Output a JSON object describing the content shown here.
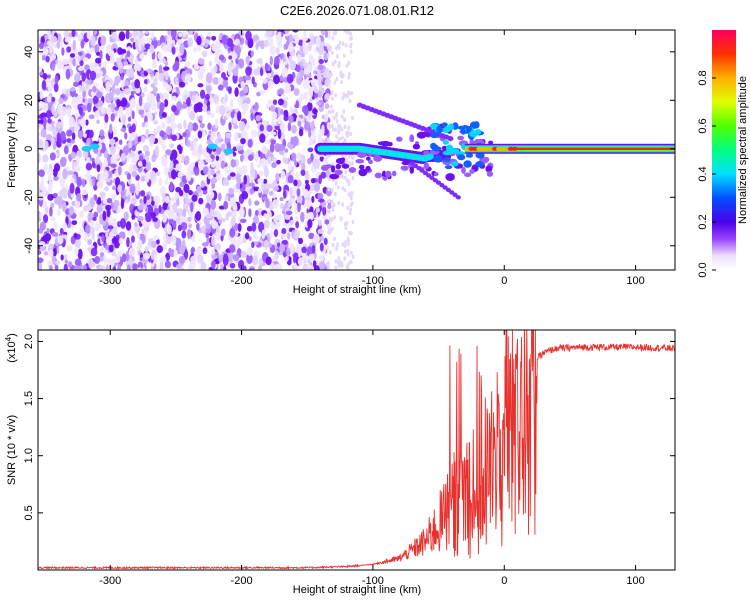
{
  "title": "C2E6.2026.071.08.01.R12",
  "chart_data": [
    {
      "type": "heatmap",
      "xlabel": "Height of straight line (km)",
      "ylabel": "Frequency (Hz)",
      "xlim": [
        -355,
        130
      ],
      "ylim": [
        -50,
        49
      ],
      "xticks": [
        -300,
        -200,
        -100,
        0,
        100
      ],
      "yticks": [
        -40,
        -20,
        0,
        20,
        40
      ],
      "colorbar": {
        "label": "Normalized spectral amplitude",
        "range": [
          0,
          1
        ],
        "ticks": [
          "0.0",
          "0.2",
          "0.4",
          "0.6",
          "0.8"
        ],
        "tick_values": [
          0.0,
          0.2,
          0.4,
          0.6,
          0.8
        ]
      },
      "features": [
        {
          "description": "noise region",
          "x_range": [
            -355,
            -135
          ],
          "freq_range": [
            -50,
            49
          ],
          "amplitude": 0.1
        },
        {
          "description": "signal track",
          "x_range": [
            -140,
            130
          ],
          "frequency": 0,
          "amplitude_peak": 1.0
        }
      ]
    },
    {
      "type": "line",
      "xlabel": "Height of straight line (km)",
      "ylabel": "SNR (10 * v/v)",
      "y_multiplier": "(x10",
      "y_multiplier_exp": "4",
      "y_multiplier_close": ")",
      "xlim": [
        -355,
        130
      ],
      "ylim": [
        0,
        2.1
      ],
      "xticks": [
        -300,
        -200,
        -100,
        0,
        100
      ],
      "yticks": [
        0.5,
        1.0,
        1.5,
        2.0
      ],
      "ytick_labels": [
        "0.5",
        "1.0",
        "1.5",
        "2.0"
      ],
      "color": "#e8302c",
      "series": [
        {
          "x": [
            -355,
            -300,
            -200,
            -150,
            -120,
            -100,
            -80,
            -60,
            -50,
            -40,
            -30,
            -20,
            -10,
            0,
            10,
            20,
            30,
            40,
            60,
            80,
            100,
            130
          ],
          "y": [
            0.02,
            0.02,
            0.02,
            0.02,
            0.03,
            0.05,
            0.1,
            0.25,
            0.4,
            0.55,
            0.7,
            0.8,
            0.9,
            1.1,
            1.5,
            1.8,
            1.9,
            1.94,
            1.95,
            1.95,
            1.95,
            1.94
          ]
        }
      ]
    }
  ]
}
